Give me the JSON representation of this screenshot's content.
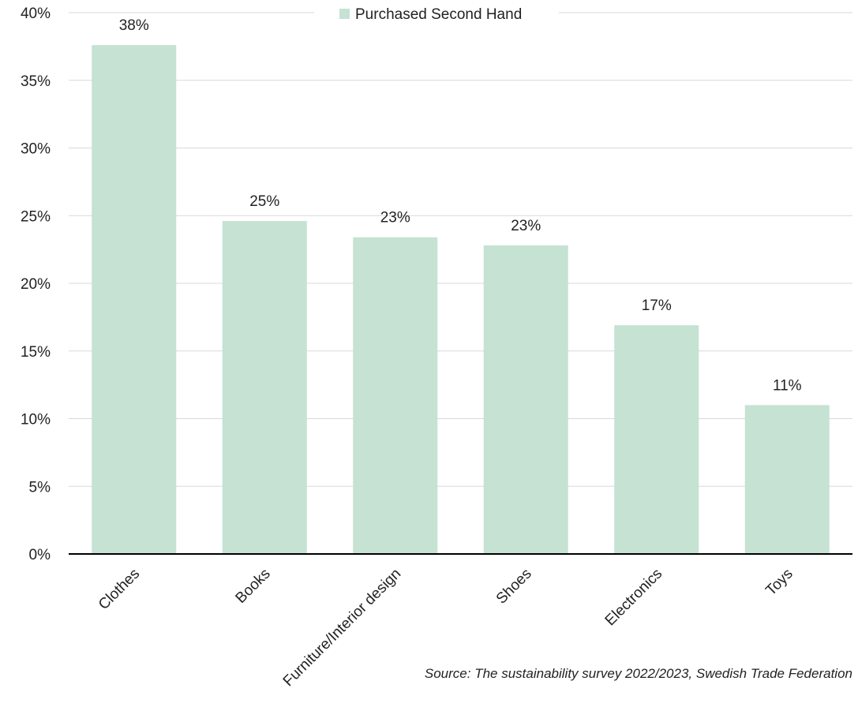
{
  "chart_data": {
    "type": "bar",
    "categories": [
      "Clothes",
      "Books",
      "Furniture/Interior design",
      "Shoes",
      "Electronics",
      "Toys"
    ],
    "series": [
      {
        "name": "Purchased Second Hand",
        "values": [
          37.6,
          24.6,
          23.4,
          22.8,
          16.9,
          11.0
        ],
        "data_labels": [
          "38%",
          "25%",
          "23%",
          "23%",
          "17%",
          "11%"
        ]
      }
    ],
    "ylim": [
      0,
      40
    ],
    "yticks": [
      {
        "value": 0,
        "label": "0%"
      },
      {
        "value": 5,
        "label": "5%"
      },
      {
        "value": 10,
        "label": "10%"
      },
      {
        "value": 15,
        "label": "15%"
      },
      {
        "value": 20,
        "label": "20%"
      },
      {
        "value": 25,
        "label": "25%"
      },
      {
        "value": 30,
        "label": "30%"
      },
      {
        "value": 35,
        "label": "35%"
      },
      {
        "value": 40,
        "label": "40%"
      }
    ],
    "grid": true,
    "legend_position": "top-center",
    "bar_color": "#c5e2d3",
    "gridline_color": "#d9d9d9",
    "axis_color": "#000000",
    "source": "Source: The sustainability survey 2022/2023, Swedish Trade Federation"
  }
}
